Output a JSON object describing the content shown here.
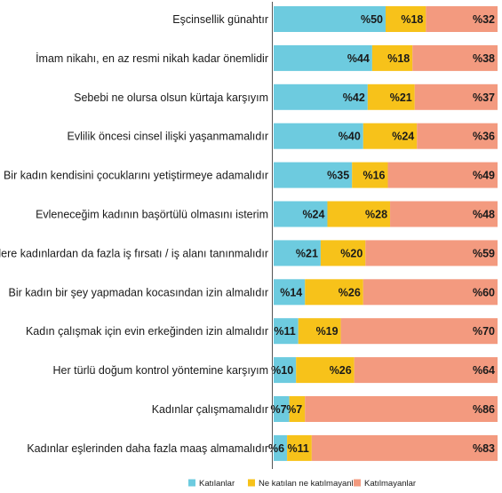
{
  "chart_data": {
    "type": "bar",
    "stacked": true,
    "orientation": "horizontal",
    "percent_prefix": "%",
    "categories": [
      "Eşcinsellik günahtır",
      "İmam nikahı, en az resmi nikah kadar önemlidir",
      "Sebebi ne olursa olsun kürtaja karşıyım",
      "Evlilik öncesi cinsel ilişki yaşanmamalıdır",
      "Bir kadın kendisini çocuklarını yetiştirmeye adamalıdır",
      "Evleneceğim kadının başörtülü olmasını isterim",
      "Erkekelere kadınlardan da fazla iş fırsatı / iş alanı tanınmalıdır",
      "Bir kadın bir şey yapmadan kocasından izin almalıdır",
      "Kadın çalışmak için evin erkeğinden izin almalıdır",
      "Her türlü doğum kontrol yöntemine karşıyım",
      "Kadınlar çalışmamalıdır",
      "Kadınlar eşlerinden daha fazla maaş almamalıdır"
    ],
    "series": [
      {
        "name": "Katılanlar",
        "color": "#6dcbdf",
        "values": [
          50,
          44,
          42,
          40,
          35,
          24,
          21,
          14,
          11,
          10,
          7,
          6
        ]
      },
      {
        "name": "Ne katılan ne katılmayanlar",
        "color": "#f7c21a",
        "values": [
          18,
          18,
          21,
          24,
          16,
          28,
          20,
          26,
          19,
          26,
          7,
          11
        ]
      },
      {
        "name": "Katılmayanlar",
        "color": "#f39a7f",
        "values": [
          32,
          38,
          37,
          36,
          49,
          48,
          59,
          60,
          70,
          64,
          86,
          83
        ]
      }
    ],
    "xlim": [
      0,
      100
    ],
    "legend_position": "bottom",
    "grid": false
  }
}
